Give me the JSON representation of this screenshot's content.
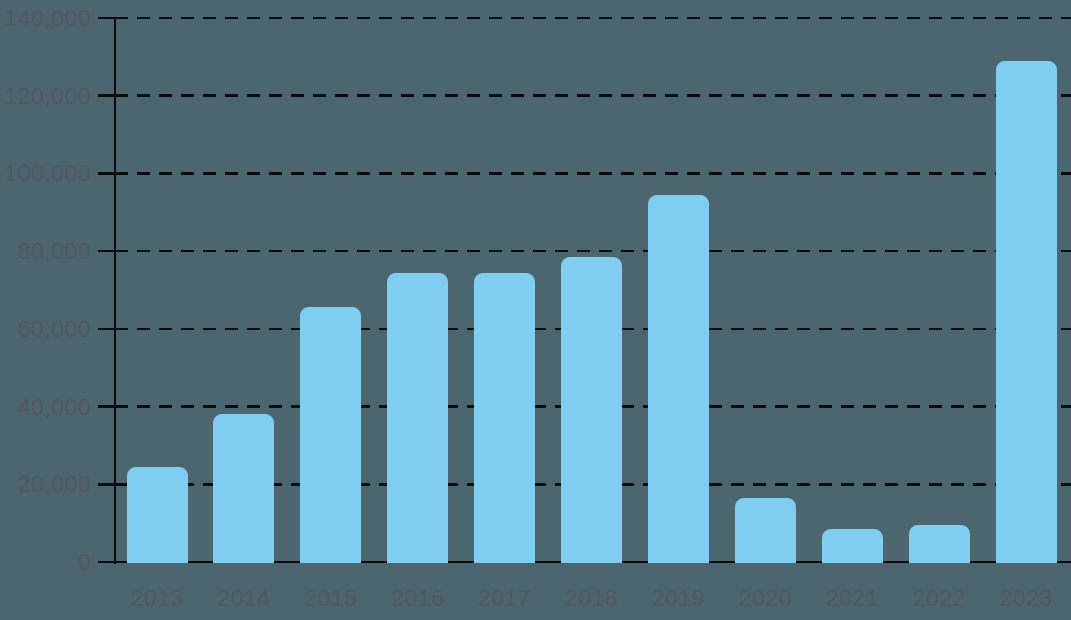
{
  "chart_data": {
    "type": "bar",
    "title": "",
    "xlabel": "",
    "ylabel": "",
    "categories": [
      "2013",
      "2014",
      "2015",
      "2016",
      "2017",
      "2018",
      "2019",
      "2020",
      "2021",
      "2022",
      "2023"
    ],
    "values": [
      24500,
      38000,
      65500,
      74500,
      74500,
      78500,
      94500,
      16500,
      8500,
      9500,
      129000
    ],
    "ylim": [
      0,
      140000
    ],
    "ytick_step": 20000,
    "ytick_labels": [
      "0",
      "20,000",
      "40,000",
      "60,000",
      "80,000",
      "100,000",
      "120,000",
      "140,000"
    ],
    "grid": "horizontal-dashed",
    "legend": "none"
  },
  "colors": {
    "background": "#4C6670",
    "bar_fill": "#7FCDF0",
    "axis": "#0b0b0b",
    "label_text": "#55585c"
  }
}
